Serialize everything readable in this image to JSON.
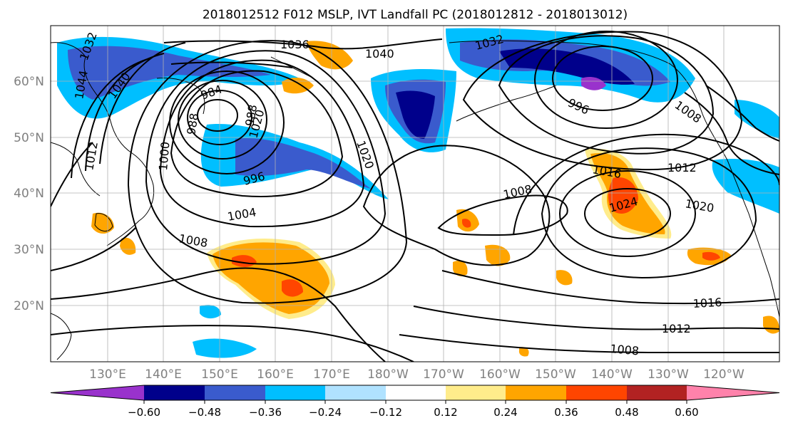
{
  "title": "2018012512 F012 MSLP, IVT Landfall PC (2018012812 - 2018013012)",
  "lat_labels": [
    "60°N",
    "50°N",
    "40°N",
    "30°N",
    "20°N"
  ],
  "lon_labels": [
    "130°E",
    "140°E",
    "150°E",
    "160°E",
    "170°E",
    "180°W",
    "170°W",
    "160°W",
    "150°W",
    "140°W",
    "130°W",
    "120°W"
  ],
  "contour_labels": [
    {
      "text": "1032"
    },
    {
      "text": "1036"
    },
    {
      "text": "1040"
    },
    {
      "text": "1044"
    },
    {
      "text": "1040"
    },
    {
      "text": "984"
    },
    {
      "text": "988"
    },
    {
      "text": "988"
    },
    {
      "text": "1000"
    },
    {
      "text": "1012"
    },
    {
      "text": "1020"
    },
    {
      "text": "996"
    },
    {
      "text": "1004"
    },
    {
      "text": "1008"
    },
    {
      "text": "1020"
    },
    {
      "text": "1032"
    },
    {
      "text": "996"
    },
    {
      "text": "1008"
    },
    {
      "text": "1008"
    },
    {
      "text": "1016"
    },
    {
      "text": "1012"
    },
    {
      "text": "1024"
    },
    {
      "text": "1020"
    },
    {
      "text": "1016"
    },
    {
      "text": "1012"
    },
    {
      "text": "1008"
    }
  ],
  "colorbar": {
    "colors": [
      "#9932cc",
      "#00008b",
      "#3a5bcd",
      "#00bfff",
      "#b0e2ff",
      "#ffffff",
      "#ffec8b",
      "#ffa500",
      "#ff4500",
      "#b22222",
      "#ff82ab"
    ],
    "ticks": [
      "−0.60",
      "−0.48",
      "−0.36",
      "−0.24",
      "−0.12",
      "0.12",
      "0.24",
      "0.36",
      "0.48",
      "0.60"
    ]
  },
  "colors": {
    "land_line": "#000000",
    "grid": "#b0b0b0",
    "axis_text": "#808080"
  }
}
